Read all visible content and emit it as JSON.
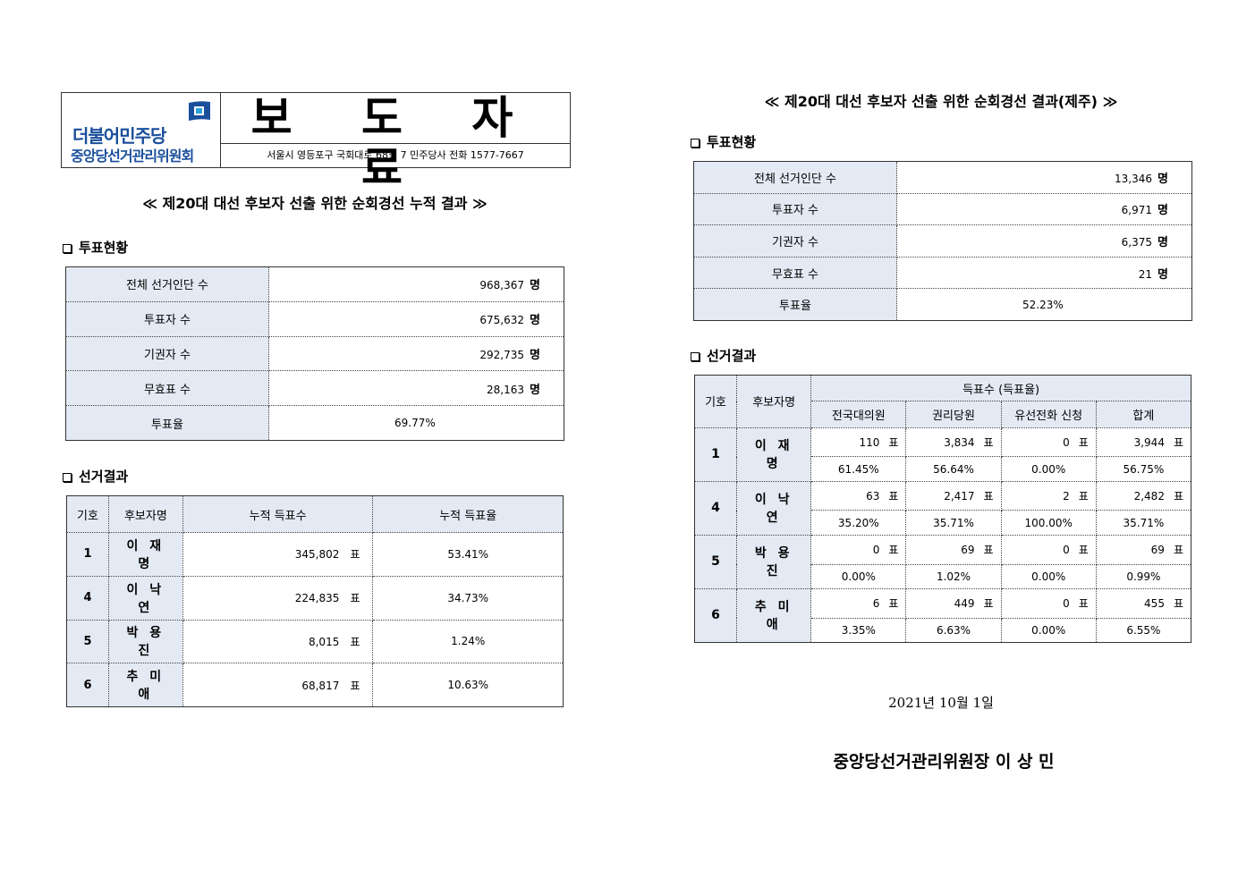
{
  "header": {
    "party_name": "더불어민주당",
    "committee_name": "중앙당선거관리위원회",
    "doc_type": "보 도 자 료",
    "address": "서울시 영등포구 국회대로 68길 7 민주당사 전화 1577-7667",
    "brand_color": "#1a4f9c",
    "accent_color": "#3cb44a"
  },
  "left": {
    "title": "≪ 제20대 대선 후보자 선출 위한 순회경선 누적 결과 ≫",
    "turnout_heading": "투표현황",
    "turnout": [
      {
        "label": "전체 선거인단 수",
        "value": "968,367",
        "unit": "명"
      },
      {
        "label": "투표자 수",
        "value": "675,632",
        "unit": "명"
      },
      {
        "label": "기권자 수",
        "value": "292,735",
        "unit": "명"
      },
      {
        "label": "무효표 수",
        "value": "28,163",
        "unit": "명"
      },
      {
        "label": "투표율",
        "value": "69.77%",
        "unit": ""
      }
    ],
    "results_heading": "선거결과",
    "results_headers": [
      "기호",
      "후보자명",
      "누적 득표수",
      "누적 득표율"
    ],
    "results": [
      {
        "no": "1",
        "name": "이 재 명",
        "votes": "345,802",
        "unit": "표",
        "rate": "53.41%"
      },
      {
        "no": "4",
        "name": "이 낙 연",
        "votes": "224,835",
        "unit": "표",
        "rate": "34.73%"
      },
      {
        "no": "5",
        "name": "박 용 진",
        "votes": "8,015",
        "unit": "표",
        "rate": "1.24%"
      },
      {
        "no": "6",
        "name": "추 미 애",
        "votes": "68,817",
        "unit": "표",
        "rate": "10.63%"
      }
    ]
  },
  "right": {
    "title": "≪ 제20대 대선 후보자 선출 위한 순회경선 결과(제주) ≫",
    "turnout_heading": "투표현황",
    "turnout": [
      {
        "label": "전체 선거인단 수",
        "value": "13,346",
        "unit": "명"
      },
      {
        "label": "투표자 수",
        "value": "6,971",
        "unit": "명"
      },
      {
        "label": "기권자 수",
        "value": "6,375",
        "unit": "명"
      },
      {
        "label": "무효표 수",
        "value": "21",
        "unit": "명"
      },
      {
        "label": "투표율",
        "value": "52.23%",
        "unit": ""
      }
    ],
    "results_heading": "선거결과",
    "results_headers": {
      "no": "기호",
      "name": "후보자명",
      "group": "득표수 (득표율)",
      "cols": [
        "전국대의원",
        "권리당원",
        "유선전화 신청",
        "합계"
      ]
    },
    "vote_unit": "표",
    "results": [
      {
        "no": "1",
        "name": "이 재 명",
        "votes": [
          "110",
          "3,834",
          "0",
          "3,944"
        ],
        "rates": [
          "61.45%",
          "56.64%",
          "0.00%",
          "56.75%"
        ]
      },
      {
        "no": "4",
        "name": "이 낙 연",
        "votes": [
          "63",
          "2,417",
          "2",
          "2,482"
        ],
        "rates": [
          "35.20%",
          "35.71%",
          "100.00%",
          "35.71%"
        ]
      },
      {
        "no": "5",
        "name": "박 용 진",
        "votes": [
          "0",
          "69",
          "0",
          "69"
        ],
        "rates": [
          "0.00%",
          "1.02%",
          "0.00%",
          "0.99%"
        ]
      },
      {
        "no": "6",
        "name": "추 미 애",
        "votes": [
          "6",
          "449",
          "0",
          "455"
        ],
        "rates": [
          "3.35%",
          "6.63%",
          "0.00%",
          "6.55%"
        ]
      }
    ],
    "date": "2021년 10월 1일",
    "signature": "중앙당선거관리위원장 이 상 민"
  }
}
